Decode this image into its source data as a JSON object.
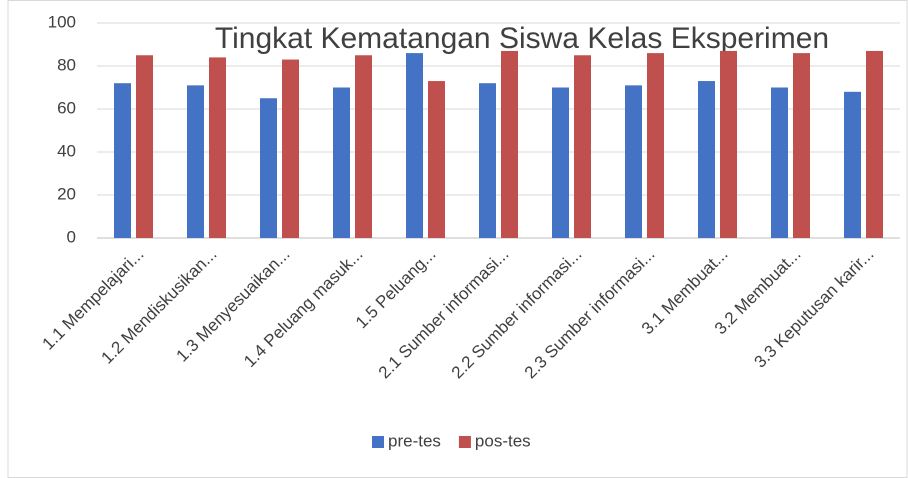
{
  "chart_data": {
    "type": "bar",
    "title": "Tingkat Kematangan Siswa Kelas Eksperimen",
    "categories": [
      "1.1 Mempelajari...",
      "1.2 Mendiskusikan...",
      "1.3 Menyesuaikan...",
      "1.4 Peluang masuk...",
      "1.5 Peluang...",
      "2.1 Sumber informasi...",
      "2.2 Sumber informasi...",
      "2.3 Sumber informasi...",
      "3.1 Membuat...",
      "3.2 Membuat...",
      "3.3 Keputusan karir..."
    ],
    "series": [
      {
        "name": "pre-tes",
        "color": "#4472c4",
        "values": [
          72,
          71,
          65,
          70,
          86,
          72,
          70,
          71,
          73,
          70,
          68
        ]
      },
      {
        "name": "pos-tes",
        "color": "#c0504d",
        "values": [
          85,
          84,
          83,
          85,
          73,
          87,
          85,
          86,
          87,
          86,
          87
        ]
      }
    ],
    "ylim": [
      0,
      100
    ],
    "yticks": [
      0,
      20,
      40,
      60,
      80,
      100
    ],
    "grid": true,
    "legend": "bottom"
  }
}
